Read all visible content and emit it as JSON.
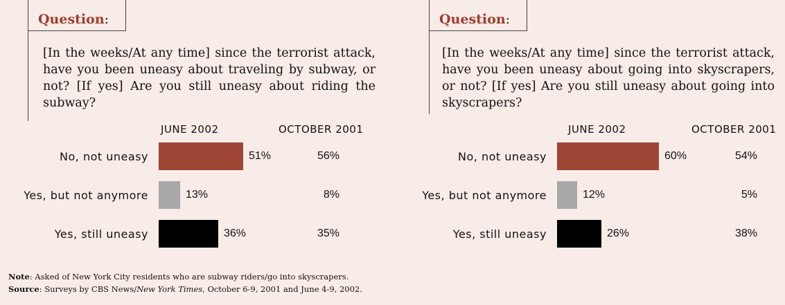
{
  "colors": {
    "background": "#f8ece8",
    "accent": "#a03c2c",
    "no_not_uneasy": "#9e4535",
    "yes_not_anymore": "#a8a8a8",
    "yes_still_uneasy": "#000000"
  },
  "chart_data": [
    {
      "type": "bar",
      "orientation": "horizontal",
      "question_label": "Question",
      "question_colon": ":",
      "question_text": "[In the weeks/At any time] since the terrorist attack, have you been uneasy about traveling by subway, or not? [If yes] Are you still uneasy about riding the subway?",
      "columns": [
        "JUNE 2002",
        "OCTOBER 2001"
      ],
      "categories": [
        "No, not uneasy",
        "Yes, but not anymore",
        "Yes, still uneasy"
      ],
      "series": [
        {
          "name": "JUNE 2002",
          "values": [
            51,
            13,
            36
          ],
          "labels": [
            "51%",
            "13%",
            "36%"
          ]
        },
        {
          "name": "OCTOBER 2001",
          "values": [
            56,
            8,
            35
          ],
          "labels": [
            "56%",
            "8%",
            "35%"
          ]
        }
      ]
    },
    {
      "type": "bar",
      "orientation": "horizontal",
      "question_label": "Question",
      "question_colon": ":",
      "question_text": "[In the weeks/At any time] since the terrorist attack, have you been uneasy about going into skyscrapers, or not? [If yes] Are you still uneasy about going into skyscrapers?",
      "columns": [
        "JUNE 2002",
        "OCTOBER 2001"
      ],
      "categories": [
        "No, not uneasy",
        "Yes, but not anymore",
        "Yes, still uneasy"
      ],
      "series": [
        {
          "name": "JUNE 2002",
          "values": [
            60,
            12,
            26
          ],
          "labels": [
            "60%",
            "12%",
            "26%"
          ]
        },
        {
          "name": "OCTOBER 2001",
          "values": [
            54,
            5,
            38
          ],
          "labels": [
            "54%",
            "5%",
            "38%"
          ]
        }
      ]
    }
  ],
  "footnotes": {
    "note_label": "Note",
    "note_text": ":  Asked of New York City residents who are subway riders/go into skyscrapers.",
    "source_label": "Source",
    "source_text_a": ":  Surveys by CBS News/",
    "source_italic": "New York Times",
    "source_text_b": ", October 6-9, 2001 and June 4-9, 2002."
  }
}
